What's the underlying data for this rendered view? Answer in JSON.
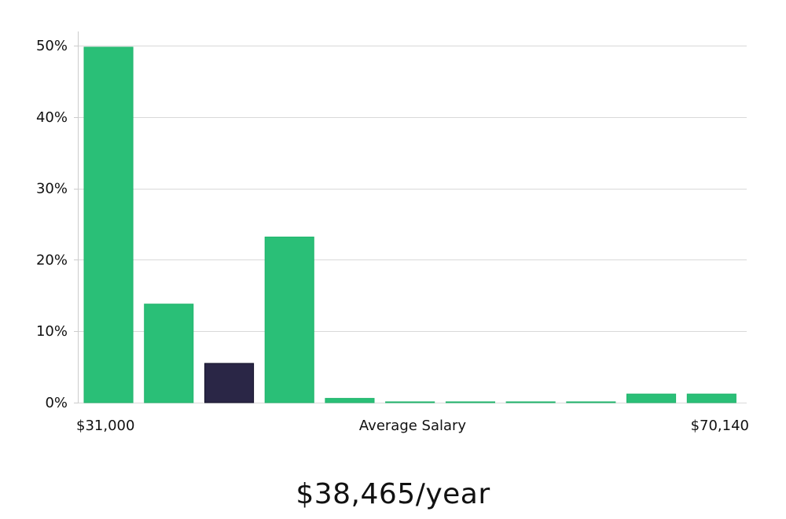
{
  "chart_data": {
    "type": "bar",
    "values": [
      49.8,
      13.8,
      5.5,
      23.2,
      0.6,
      0.05,
      0.05,
      0.05,
      0.05,
      1.2,
      1.2
    ],
    "highlight_index": 2,
    "ylim": [
      0,
      52
    ],
    "yticks": [
      "0%",
      "10%",
      "20%",
      "30%",
      "40%",
      "50%"
    ],
    "ytick_values": [
      0,
      10,
      20,
      30,
      40,
      50
    ],
    "x_min_label": "$31,000",
    "xlabel": "Average Salary",
    "x_max_label": "$70,140",
    "grid": true,
    "colors": {
      "bar": "#2abf77",
      "bar_edge": "#22b56d",
      "highlight": "#2a2646",
      "highlight_edge": "#15132a",
      "grid": "#d9d9d9",
      "axis": "#cccccc"
    }
  },
  "average_salary": "$38,465/year"
}
